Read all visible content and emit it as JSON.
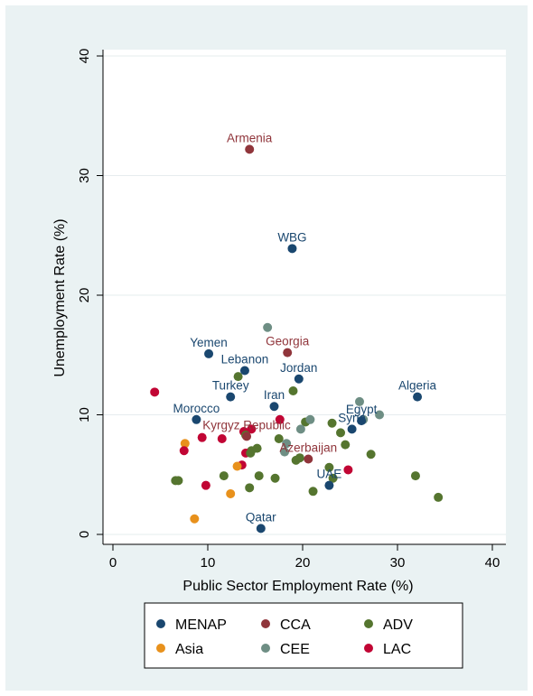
{
  "chart_data": {
    "type": "scatter",
    "xlabel": "Public Sector Employment Rate (%)",
    "ylabel": "Unemployment Rate (%)",
    "xlim": [
      0,
      40
    ],
    "ylim": [
      0,
      40
    ],
    "xticks": [
      0,
      10,
      20,
      30,
      40
    ],
    "yticks": [
      0,
      10,
      20,
      30,
      40
    ],
    "grid": "horizontal",
    "legend_position": "bottom",
    "groups": [
      {
        "name": "MENAP",
        "color": "#1a476f"
      },
      {
        "name": "Asia",
        "color": "#e8911c"
      },
      {
        "name": "CCA",
        "color": "#90353b"
      },
      {
        "name": "CEE",
        "color": "#6e8e84"
      },
      {
        "name": "ADV",
        "color": "#55752f"
      },
      {
        "name": "LAC",
        "color": "#c10534"
      }
    ],
    "labeled_points": [
      {
        "label": "Armenia",
        "group": "CCA",
        "x": 14.4,
        "y": 32.2
      },
      {
        "label": "WBG",
        "group": "MENAP",
        "x": 18.9,
        "y": 23.9
      },
      {
        "label": "Yemen",
        "group": "MENAP",
        "x": 10.1,
        "y": 15.1
      },
      {
        "label": "Georgia",
        "group": "CCA",
        "x": 18.4,
        "y": 15.2
      },
      {
        "label": "Lebanon",
        "group": "MENAP",
        "x": 13.9,
        "y": 13.7
      },
      {
        "label": "Jordan",
        "group": "MENAP",
        "x": 19.6,
        "y": 13.0
      },
      {
        "label": "Turkey",
        "group": "MENAP",
        "x": 12.4,
        "y": 11.5
      },
      {
        "label": "Algeria",
        "group": "MENAP",
        "x": 32.1,
        "y": 11.5
      },
      {
        "label": "Iran",
        "group": "MENAP",
        "x": 17.0,
        "y": 10.7
      },
      {
        "label": "Morocco",
        "group": "MENAP",
        "x": 8.8,
        "y": 9.6
      },
      {
        "label": "Egypt",
        "group": "MENAP",
        "x": 26.2,
        "y": 9.5
      },
      {
        "label": "Syria",
        "group": "MENAP",
        "x": 25.2,
        "y": 8.8
      },
      {
        "label": "Kyrgyz Republic",
        "group": "CCA",
        "x": 14.1,
        "y": 8.2
      },
      {
        "label": "Azerbaijan",
        "group": "CCA",
        "x": 20.6,
        "y": 6.3
      },
      {
        "label": "UAE",
        "group": "MENAP",
        "x": 22.8,
        "y": 4.1
      },
      {
        "label": "Qatar",
        "group": "MENAP",
        "x": 15.6,
        "y": 0.5
      }
    ],
    "points": [
      {
        "group": "CEE",
        "x": 16.3,
        "y": 17.3
      },
      {
        "group": "ADV",
        "x": 13.2,
        "y": 13.2
      },
      {
        "group": "ADV",
        "x": 19.0,
        "y": 12.0
      },
      {
        "group": "LAC",
        "x": 4.4,
        "y": 11.9
      },
      {
        "group": "CEE",
        "x": 26.0,
        "y": 11.1
      },
      {
        "group": "ADV",
        "x": 20.3,
        "y": 9.4
      },
      {
        "group": "CEE",
        "x": 20.8,
        "y": 9.6
      },
      {
        "group": "LAC",
        "x": 17.6,
        "y": 9.6
      },
      {
        "group": "ADV",
        "x": 23.1,
        "y": 9.3
      },
      {
        "group": "CEE",
        "x": 26.4,
        "y": 9.6
      },
      {
        "group": "CEE",
        "x": 28.1,
        "y": 10.0
      },
      {
        "group": "CEE",
        "x": 19.8,
        "y": 8.8
      },
      {
        "group": "ADV",
        "x": 24.0,
        "y": 8.5
      },
      {
        "group": "LAC",
        "x": 13.8,
        "y": 8.6
      },
      {
        "group": "LAC",
        "x": 14.6,
        "y": 8.8
      },
      {
        "group": "ADV",
        "x": 14.0,
        "y": 8.3
      },
      {
        "group": "LAC",
        "x": 9.4,
        "y": 8.1
      },
      {
        "group": "LAC",
        "x": 11.5,
        "y": 8.0
      },
      {
        "group": "ADV",
        "x": 17.5,
        "y": 8.0
      },
      {
        "group": "Asia",
        "x": 7.6,
        "y": 7.6
      },
      {
        "group": "CEE",
        "x": 18.3,
        "y": 7.6
      },
      {
        "group": "ADV",
        "x": 24.5,
        "y": 7.5
      },
      {
        "group": "ADV",
        "x": 15.2,
        "y": 7.2
      },
      {
        "group": "ADV",
        "x": 14.6,
        "y": 7.0
      },
      {
        "group": "LAC",
        "x": 7.5,
        "y": 7.0
      },
      {
        "group": "CEE",
        "x": 18.1,
        "y": 6.9
      },
      {
        "group": "LAC",
        "x": 14.0,
        "y": 6.8
      },
      {
        "group": "ADV",
        "x": 14.5,
        "y": 6.8
      },
      {
        "group": "ADV",
        "x": 27.2,
        "y": 6.7
      },
      {
        "group": "ADV",
        "x": 19.3,
        "y": 6.2
      },
      {
        "group": "ADV",
        "x": 19.7,
        "y": 6.4
      },
      {
        "group": "LAC",
        "x": 13.6,
        "y": 5.8
      },
      {
        "group": "Asia",
        "x": 13.1,
        "y": 5.7
      },
      {
        "group": "ADV",
        "x": 22.8,
        "y": 5.6
      },
      {
        "group": "LAC",
        "x": 24.8,
        "y": 5.4
      },
      {
        "group": "ADV",
        "x": 11.7,
        "y": 4.9
      },
      {
        "group": "ADV",
        "x": 15.4,
        "y": 4.9
      },
      {
        "group": "ADV",
        "x": 17.1,
        "y": 4.7
      },
      {
        "group": "ADV",
        "x": 23.2,
        "y": 4.7
      },
      {
        "group": "ADV",
        "x": 31.9,
        "y": 4.9
      },
      {
        "group": "ADV",
        "x": 6.6,
        "y": 4.5
      },
      {
        "group": "ADV",
        "x": 6.9,
        "y": 4.5
      },
      {
        "group": "LAC",
        "x": 9.8,
        "y": 4.1
      },
      {
        "group": "ADV",
        "x": 14.4,
        "y": 3.9
      },
      {
        "group": "ADV",
        "x": 21.1,
        "y": 3.6
      },
      {
        "group": "Asia",
        "x": 12.4,
        "y": 3.4
      },
      {
        "group": "ADV",
        "x": 34.3,
        "y": 3.1
      },
      {
        "group": "Asia",
        "x": 8.6,
        "y": 1.3
      }
    ]
  }
}
